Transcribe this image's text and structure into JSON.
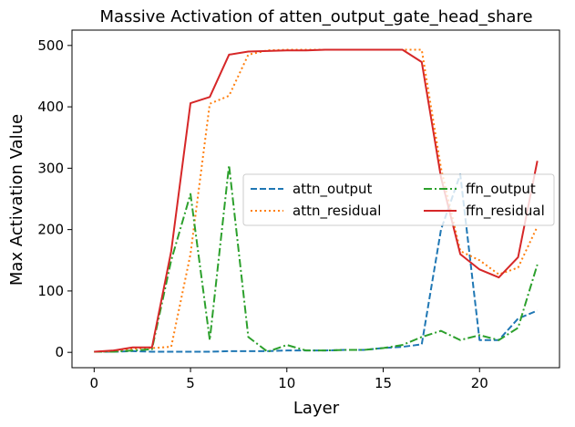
{
  "chart_data": {
    "type": "line",
    "title": "Massive Activation of atten_output_gate_head_share",
    "xlabel": "Layer",
    "ylabel": "Max Activation Value",
    "xlim": [
      -1.15,
      24.15
    ],
    "ylim": [
      -25,
      525
    ],
    "xticks": [
      0,
      5,
      10,
      15,
      20
    ],
    "yticks": [
      0,
      100,
      200,
      300,
      400,
      500
    ],
    "grid": false,
    "legend_position": "center-right",
    "legend_columns": 2,
    "x": [
      0,
      1,
      2,
      3,
      4,
      5,
      6,
      7,
      8,
      9,
      10,
      11,
      12,
      13,
      14,
      15,
      16,
      17,
      18,
      19,
      20,
      21,
      22,
      23
    ],
    "series": [
      {
        "name": "attn_output",
        "color": "#1f77b4",
        "dash": "dashdot-long",
        "values": [
          1,
          1,
          2,
          1,
          1,
          1,
          1,
          2,
          2,
          2,
          3,
          3,
          3,
          4,
          4,
          7,
          9,
          13,
          200,
          290,
          20,
          20,
          55,
          68
        ]
      },
      {
        "name": "attn_residual",
        "color": "#ff7f0e",
        "dash": "dotted",
        "values": [
          1,
          2,
          6,
          7,
          9,
          160,
          405,
          418,
          485,
          492,
          493,
          493,
          493,
          493,
          493,
          493,
          493,
          493,
          300,
          165,
          150,
          127,
          138,
          205
        ]
      },
      {
        "name": "ffn_output",
        "color": "#2ca02c",
        "dash": "dashdot",
        "values": [
          1,
          1,
          3,
          5,
          150,
          258,
          20,
          305,
          25,
          1,
          12,
          3,
          3,
          4,
          4,
          7,
          12,
          25,
          35,
          20,
          28,
          20,
          40,
          143
        ]
      },
      {
        "name": "ffn_residual",
        "color": "#d62728",
        "dash": "solid",
        "values": [
          1,
          3,
          8,
          8,
          165,
          406,
          416,
          485,
          490,
          491,
          492,
          492,
          493,
          493,
          493,
          493,
          493,
          473,
          285,
          160,
          135,
          122,
          155,
          312
        ]
      }
    ]
  }
}
